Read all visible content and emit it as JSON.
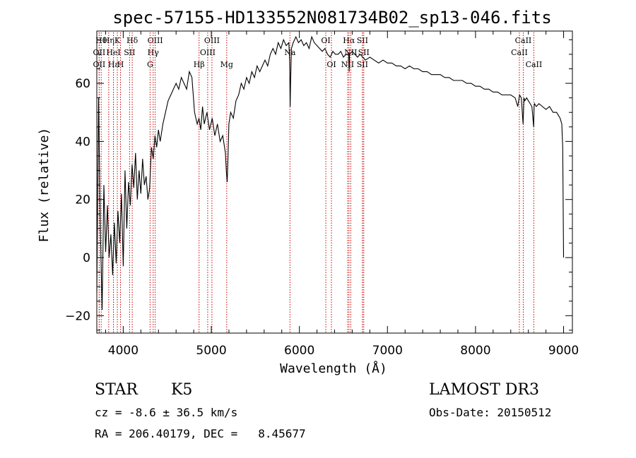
{
  "chart_data": {
    "type": "line",
    "title": "spec-57155-HD133552N081734B02_sp13-046.fits",
    "xlabel": "Wavelength (Å)",
    "ylabel": "Flux (relative)",
    "xlim": [
      3700,
      9100
    ],
    "ylim": [
      -26,
      78
    ],
    "xticks": [
      "4000",
      "5000",
      "6000",
      "7000",
      "8000",
      "9000"
    ],
    "yticks": [
      "-20",
      "0",
      "20",
      "40",
      "60"
    ],
    "grid": false,
    "series": [
      {
        "x": [
          3700,
          3720,
          3740,
          3760,
          3780,
          3800,
          3820,
          3840,
          3860,
          3880,
          3900,
          3920,
          3940,
          3960,
          3980,
          4000,
          4020,
          4040,
          4060,
          4080,
          4100,
          4120,
          4140,
          4160,
          4180,
          4200,
          4220,
          4240,
          4260,
          4280,
          4300,
          4320,
          4340,
          4360,
          4380,
          4400,
          4420,
          4450,
          4480,
          4510,
          4540,
          4570,
          4600,
          4630,
          4660,
          4690,
          4720,
          4750,
          4780,
          4810,
          4840,
          4860,
          4880,
          4900,
          4920,
          4950,
          4980,
          5010,
          5040,
          5070,
          5100,
          5130,
          5160,
          5170,
          5180,
          5190,
          5200,
          5220,
          5250,
          5280,
          5310,
          5340,
          5370,
          5400,
          5430,
          5460,
          5490,
          5520,
          5550,
          5580,
          5610,
          5640,
          5670,
          5700,
          5730,
          5760,
          5790,
          5820,
          5850,
          5880,
          5890,
          5895,
          5900,
          5910,
          5930,
          5960,
          5990,
          6020,
          6050,
          6080,
          6110,
          6140,
          6170,
          6200,
          6230,
          6260,
          6290,
          6320,
          6350,
          6380,
          6410,
          6440,
          6470,
          6500,
          6530,
          6560,
          6565,
          6570,
          6600,
          6630,
          6660,
          6690,
          6720,
          6750,
          6800,
          6850,
          6900,
          6950,
          7000,
          7050,
          7100,
          7150,
          7200,
          7250,
          7300,
          7350,
          7400,
          7450,
          7500,
          7550,
          7600,
          7650,
          7700,
          7750,
          7800,
          7850,
          7900,
          7950,
          8000,
          8050,
          8100,
          8150,
          8200,
          8250,
          8300,
          8350,
          8400,
          8450,
          8480,
          8500,
          8520,
          8540,
          8550,
          8560,
          8580,
          8600,
          8620,
          8640,
          8660,
          8665,
          8670,
          8690,
          8720,
          8760,
          8800,
          8840,
          8880,
          8920,
          8960,
          8980,
          8990,
          9000
        ],
        "y": [
          -12,
          55,
          10,
          -18,
          25,
          2,
          18,
          0,
          8,
          -6,
          12,
          -2,
          16,
          5,
          22,
          -3,
          30,
          10,
          26,
          18,
          32,
          24,
          36,
          20,
          30,
          22,
          34,
          25,
          28,
          20,
          24,
          38,
          34,
          42,
          38,
          44,
          40,
          46,
          50,
          54,
          56,
          58,
          60,
          58,
          62,
          60,
          58,
          64,
          62,
          50,
          46,
          48,
          44,
          52,
          46,
          50,
          44,
          48,
          42,
          46,
          40,
          42,
          36,
          30,
          26,
          35,
          46,
          50,
          48,
          54,
          56,
          60,
          58,
          62,
          60,
          64,
          62,
          66,
          64,
          66,
          68,
          66,
          70,
          72,
          70,
          74,
          72,
          75,
          73,
          74,
          68,
          52,
          60,
          72,
          74,
          76,
          74,
          75,
          73,
          74,
          72,
          76,
          74,
          73,
          72,
          71,
          72,
          70,
          69,
          71,
          70,
          70,
          71,
          69,
          70,
          70,
          64,
          70,
          71,
          70,
          69,
          70,
          69,
          68,
          69,
          68,
          67,
          68,
          67,
          67,
          66,
          66,
          65,
          66,
          65,
          65,
          64,
          64,
          63,
          63,
          63,
          62,
          62,
          61,
          61,
          61,
          60,
          60,
          59,
          59,
          58,
          58,
          57,
          57,
          56,
          56,
          56,
          55,
          52,
          56,
          55,
          46,
          55,
          54,
          55,
          54,
          53,
          52,
          45,
          52,
          53,
          52,
          53,
          52,
          51,
          52,
          50,
          50,
          48,
          46,
          38,
          0
        ]
      }
    ],
    "line_markers": [
      {
        "label": "Hθ",
        "x": 3750,
        "row": 0
      },
      {
        "label": "OII",
        "x": 3727,
        "row": 1
      },
      {
        "label": "OII",
        "x": 3727,
        "row": 2
      },
      {
        "label": "Hη",
        "x": 3835,
        "row": 0
      },
      {
        "label": "HeI",
        "x": 3889,
        "row": 1
      },
      {
        "label": "Hε",
        "x": 3889,
        "row": 2
      },
      {
        "label": "K",
        "x": 3933,
        "row": 0
      },
      {
        "label": "SII",
        "x": 4072,
        "row": 1
      },
      {
        "label": "H",
        "x": 3969,
        "row": 2
      },
      {
        "label": "Hδ",
        "x": 4102,
        "row": 0
      },
      {
        "label": "OIII",
        "x": 4363,
        "row": 0
      },
      {
        "label": "Hγ",
        "x": 4340,
        "row": 1
      },
      {
        "label": "G",
        "x": 4305,
        "row": 2
      },
      {
        "label": "Hβ",
        "x": 4861,
        "row": 2
      },
      {
        "label": "OIII",
        "x": 5007,
        "row": 0
      },
      {
        "label": "OIII",
        "x": 4959,
        "row": 1
      },
      {
        "label": "Mg",
        "x": 5175,
        "row": 2
      },
      {
        "label": "Na",
        "x": 5893,
        "row": 1
      },
      {
        "label": "OI",
        "x": 6300,
        "row": 0
      },
      {
        "label": "OI",
        "x": 6364,
        "row": 2
      },
      {
        "label": "Hα",
        "x": 6563,
        "row": 0
      },
      {
        "label": "NII",
        "x": 6583,
        "row": 1
      },
      {
        "label": "NII",
        "x": 6548,
        "row": 2
      },
      {
        "label": "SII",
        "x": 6716,
        "row": 0
      },
      {
        "label": "SII",
        "x": 6731,
        "row": 1
      },
      {
        "label": "SII",
        "x": 6716,
        "row": 2
      },
      {
        "label": "CaII",
        "x": 8542,
        "row": 0
      },
      {
        "label": "CaII",
        "x": 8498,
        "row": 1
      },
      {
        "label": "CaII",
        "x": 8662,
        "row": 2
      }
    ]
  },
  "info": {
    "object_class": "STAR",
    "subclass": "K5",
    "survey": "LAMOST DR3",
    "cz": "cz = -8.6 ± 36.5 km/s",
    "obs_date": "Obs-Date: 20150512",
    "coords": "RA = 206.40179, DEC =   8.45677"
  },
  "colors": {
    "spectrum": "#000000",
    "marker_line": "#cc0000"
  }
}
